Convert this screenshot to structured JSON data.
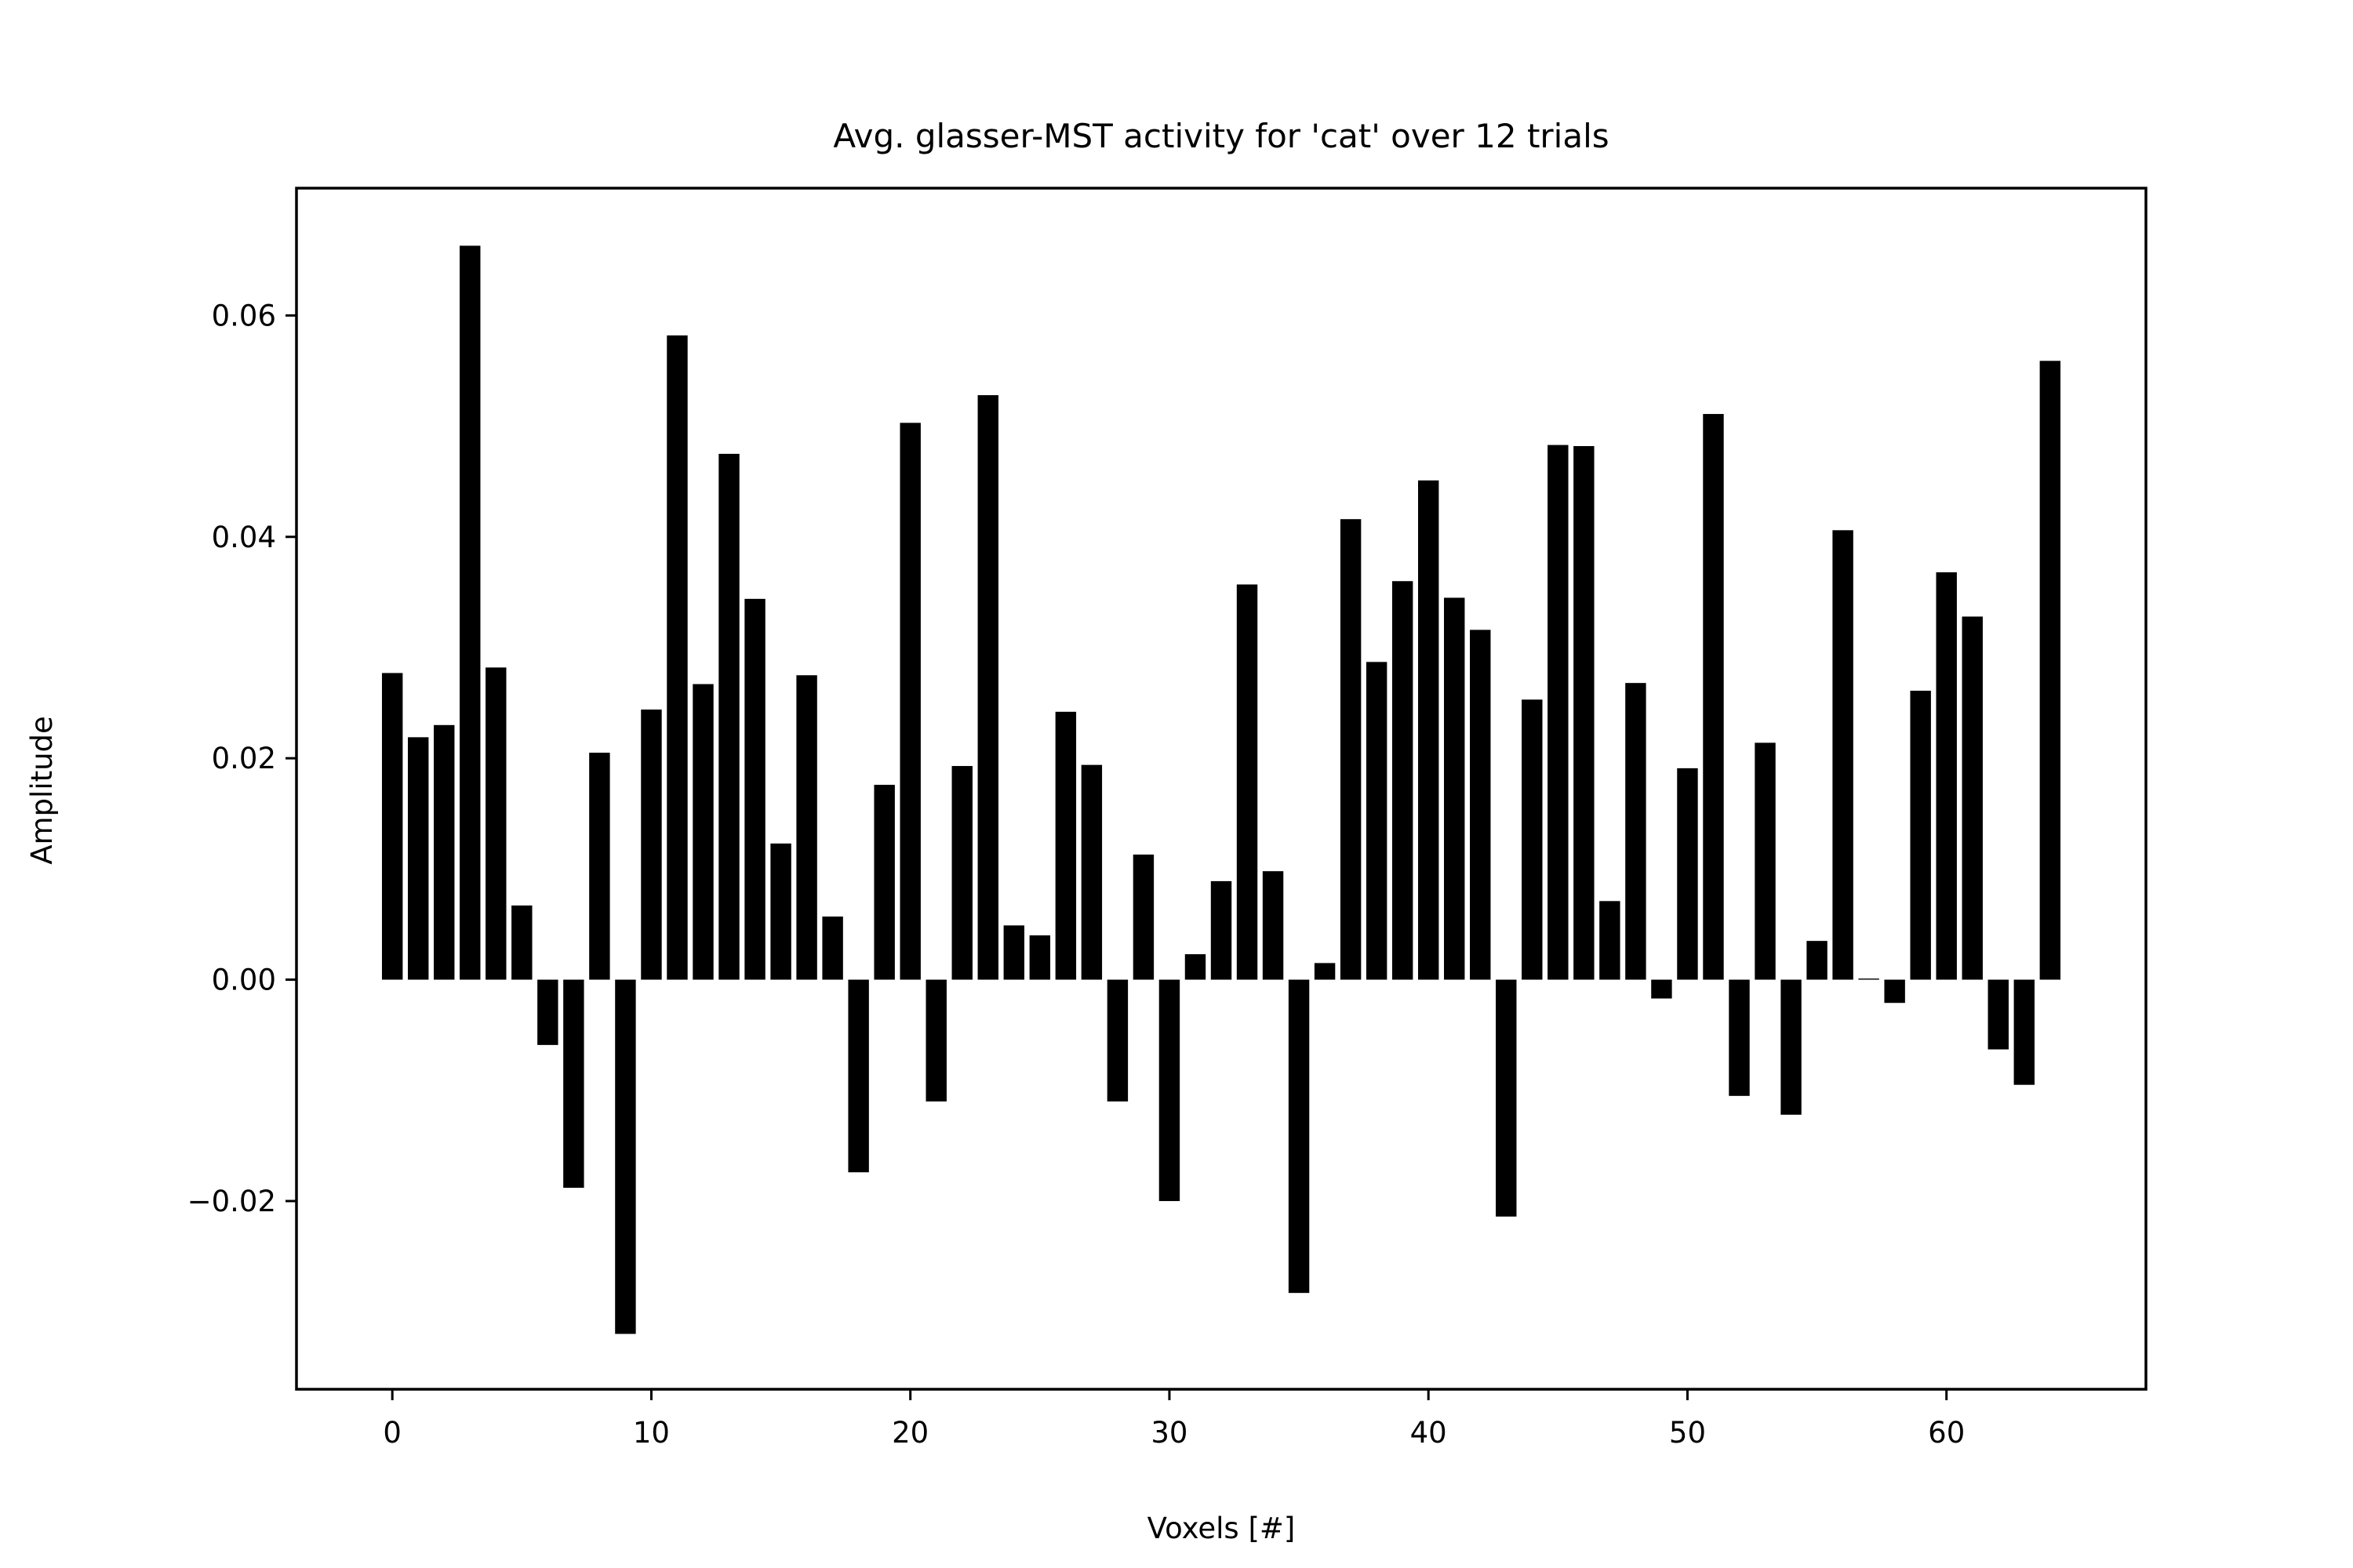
{
  "chart_data": {
    "type": "bar",
    "title": "Avg. glasser-MST activity for 'cat' over 12 trials",
    "xlabel": "Voxels [#]",
    "ylabel": "Amplitude",
    "xlim": [
      -3.7,
      67.7
    ],
    "ylim": [
      -0.037,
      0.0715
    ],
    "grid": false,
    "legend": "none",
    "bar_color": "#000000",
    "x_ticks": [
      0,
      10,
      20,
      30,
      40,
      50,
      60
    ],
    "x_tick_labels": [
      "0",
      "10",
      "20",
      "30",
      "40",
      "50",
      "60"
    ],
    "y_ticks": [
      -0.02,
      0.0,
      0.02,
      0.04,
      0.06
    ],
    "y_tick_labels": [
      "−0.02",
      "0.00",
      "0.02",
      "0.04",
      "0.06"
    ],
    "x": [
      0,
      1,
      2,
      3,
      4,
      5,
      6,
      7,
      8,
      9,
      10,
      11,
      12,
      13,
      14,
      15,
      16,
      17,
      18,
      19,
      20,
      21,
      22,
      23,
      24,
      25,
      26,
      27,
      28,
      29,
      30,
      31,
      32,
      33,
      34,
      35,
      36,
      37,
      38,
      39,
      40,
      41,
      42,
      43,
      44,
      45,
      46,
      47,
      48,
      49,
      50,
      51,
      52,
      53,
      54,
      55,
      56,
      57,
      58,
      59,
      60,
      61,
      62,
      63,
      64
    ],
    "values": [
      0.0277,
      0.0219,
      0.023,
      0.0663,
      0.0282,
      0.0067,
      -0.0059,
      -0.0188,
      0.0205,
      -0.032,
      0.0244,
      0.0582,
      0.0267,
      0.0475,
      0.0344,
      0.0123,
      0.0275,
      0.0057,
      -0.0174,
      0.0176,
      0.0503,
      -0.011,
      0.0193,
      0.0528,
      0.0049,
      0.004,
      0.0242,
      0.0194,
      -0.011,
      0.0113,
      -0.02,
      0.0023,
      0.0089,
      0.0357,
      0.0098,
      -0.0283,
      0.0015,
      0.0416,
      0.0287,
      0.036,
      0.0451,
      0.0345,
      0.0316,
      -0.0214,
      0.0253,
      0.0483,
      0.0482,
      0.0071,
      0.0268,
      -0.0017,
      0.0191,
      0.0511,
      -0.0105,
      0.0214,
      -0.0122,
      0.0035,
      0.0406,
      0.0001,
      -0.0021,
      0.0261,
      0.0368,
      0.0328,
      -0.0063,
      -0.0095,
      0.0559
    ]
  }
}
